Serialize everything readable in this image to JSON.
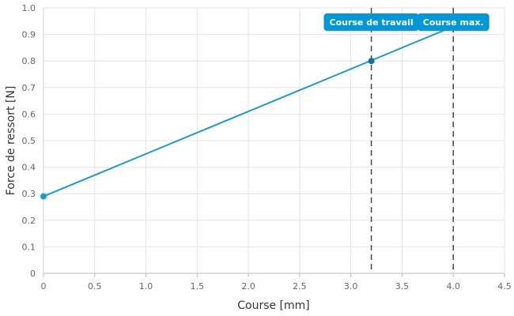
{
  "chart_data": {
    "type": "line",
    "xlabel": "Course [mm]",
    "ylabel": "Force de ressort [N]",
    "xlim": [
      0,
      4.5
    ],
    "ylim": [
      0,
      1.0
    ],
    "x_ticks": [
      0,
      0.5,
      1.0,
      1.5,
      2.0,
      2.5,
      3.0,
      3.5,
      4.0,
      4.5
    ],
    "x_tick_labels": [
      "0",
      "0.5",
      "1.0",
      "1.5",
      "2.0",
      "2.5",
      "3.0",
      "3.5",
      "4.0",
      "4.5"
    ],
    "y_ticks": [
      0,
      0.1,
      0.2,
      0.3,
      0.4,
      0.5,
      0.6,
      0.7,
      0.8,
      0.9,
      1.0
    ],
    "y_tick_labels": [
      "0",
      "0.1",
      "0.2",
      "0.3",
      "0.4",
      "0.5",
      "0.6",
      "0.7",
      "0.8",
      "0.9",
      "1.0"
    ],
    "grid": true,
    "series": [
      {
        "color": "#1a9bd7",
        "x": [
          0,
          4.0
        ],
        "y": [
          0.29,
          0.93
        ]
      }
    ],
    "markers": [
      {
        "x": 0,
        "y": 0.29,
        "color": "#1a9bd7"
      },
      {
        "x": 3.2,
        "y": 0.8,
        "color": "#0f6f9a"
      }
    ],
    "vlines": [
      {
        "x": 3.2,
        "label": "Course de travail",
        "style": "dashed",
        "color": "#444444"
      },
      {
        "x": 4.0,
        "label": "Course max.",
        "style": "dashed",
        "color": "#444444"
      }
    ],
    "annotation_color": "#0098d9"
  }
}
